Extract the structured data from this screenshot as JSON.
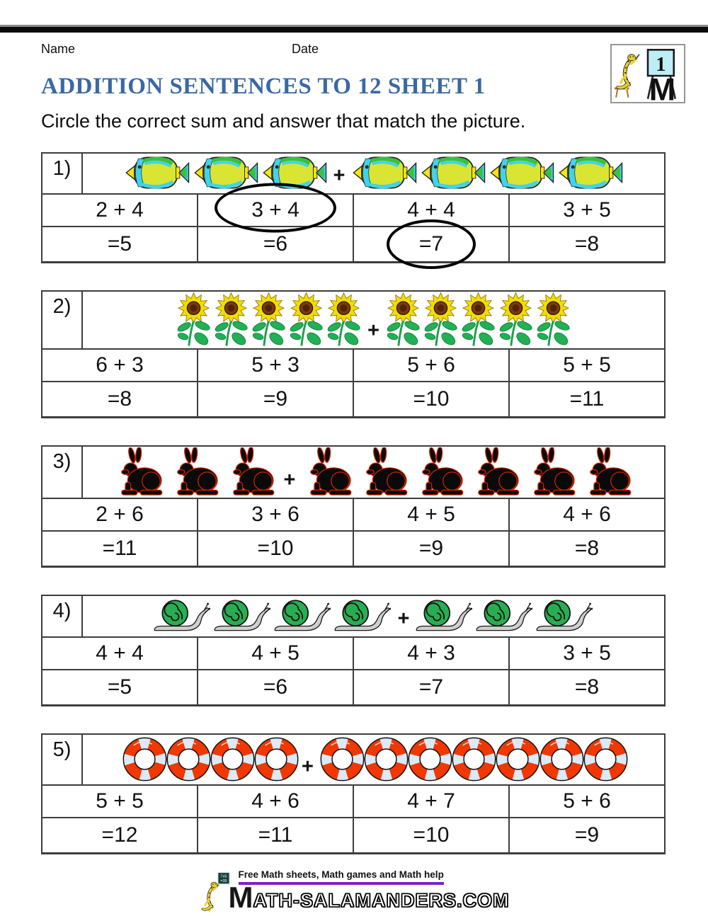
{
  "header": {
    "name_label": "Name",
    "date_label": "Date",
    "title": "ADDITION SENTENCES TO 12 SHEET 1",
    "instruction": "Circle the correct sum and answer that match the picture.",
    "badge_number": "1"
  },
  "colors": {
    "title_blue": "#3a68a4",
    "underline_purple": "#7a22cc",
    "circle_black": "#000000",
    "table_border": "#3d3d3d",
    "fish_body_yellow_green": "#d9e532",
    "fish_fin_cyan": "#3fd3ee",
    "fish_green": "#39c13f",
    "sunflower_petal_yellow": "#f2dc00",
    "sunflower_center_brown": "#7b3a0e",
    "leaf_green": "#22b055",
    "rabbit_black": "#0a0a0a",
    "rabbit_outline_red": "#cc2200",
    "snail_shell_green": "#29ad52",
    "snail_body_gray": "#cfcfcf",
    "lifering_orange": "#f03800",
    "lifering_band_blue": "#dce9f6"
  },
  "problems": [
    {
      "label": "1)",
      "icon": "fish",
      "left_count": 3,
      "right_count": 4,
      "plus": "+",
      "sums": [
        "2 + 4",
        "3 + 4",
        "4 + 4",
        "3 + 5"
      ],
      "answers": [
        "=5",
        "=6",
        "=7",
        "=8"
      ],
      "circled_sum_index": 1,
      "circled_answer_index": 2
    },
    {
      "label": "2)",
      "icon": "sunflower",
      "left_count": 5,
      "right_count": 5,
      "plus": "+",
      "sums": [
        "6 + 3",
        "5 + 3",
        "5 + 6",
        "5 + 5"
      ],
      "answers": [
        "=8",
        "=9",
        "=10",
        "=11"
      ],
      "circled_sum_index": null,
      "circled_answer_index": null
    },
    {
      "label": "3)",
      "icon": "rabbit",
      "left_count": 3,
      "right_count": 6,
      "plus": "+",
      "sums": [
        "2 + 6",
        "3 + 6",
        "4 + 5",
        "4 + 6"
      ],
      "answers": [
        "=11",
        "=10",
        "=9",
        "=8"
      ],
      "circled_sum_index": null,
      "circled_answer_index": null
    },
    {
      "label": "4)",
      "icon": "snail",
      "left_count": 4,
      "right_count": 3,
      "plus": "+",
      "sums": [
        "4 + 4",
        "4 + 5",
        "4 + 3",
        "3 + 5"
      ],
      "answers": [
        "=5",
        "=6",
        "=7",
        "=8"
      ],
      "circled_sum_index": null,
      "circled_answer_index": null
    },
    {
      "label": "5)",
      "icon": "lifering",
      "left_count": 4,
      "right_count": 7,
      "plus": "+",
      "sums": [
        "5 + 5",
        "4 + 6",
        "4 + 7",
        "5 + 6"
      ],
      "answers": [
        "=12",
        "=11",
        "=10",
        "=9"
      ],
      "circled_sum_index": null,
      "circled_answer_index": null
    }
  ],
  "footer": {
    "board_line1": "7x5",
    "board_line2": "=35",
    "tagline": "Free Math sheets, Math games and Math help",
    "brand_m": "M",
    "brand_rest": "ATH-SALAMANDERS.COM"
  }
}
